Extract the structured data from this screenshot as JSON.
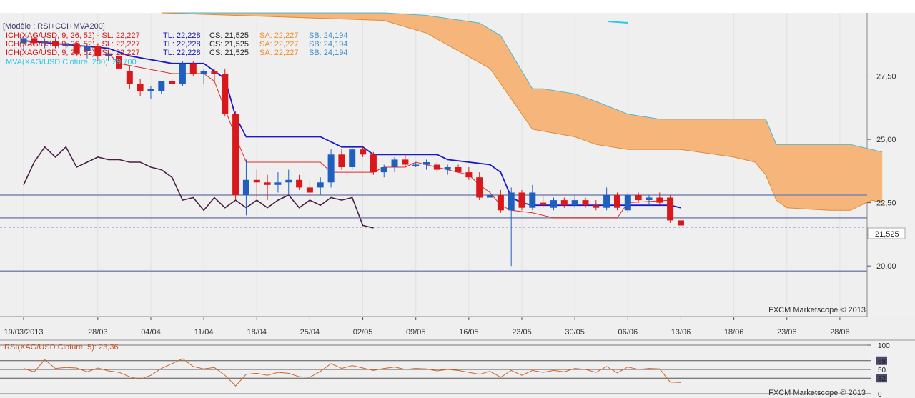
{
  "chart_data": [
    {
      "type": "candlestick",
      "title": "[Modèle : RSI+CCI+MVA200]",
      "legend": [
        {
          "text": "ICH(XAG/USD, 9, 26, 52) -  SL: 22,227",
          "tl": "TL: 22,228",
          "cs": "CS: 21,525",
          "sa": "SA: 22,227",
          "sb": "SB: 24,194"
        },
        {
          "text": "ICH(XAG/USD, 9, 26, 52) -  SL: 22,227",
          "tl": "TL: 22,228",
          "cs": "CS: 21,525",
          "sa": "SA: 22,227",
          "sb": "SB: 24,194"
        },
        {
          "text": "ICH(XAG/USD, 9, 26, 52) -  SL: 22,227",
          "tl": "TL: 22,228",
          "cs": "CS: 21,525",
          "sa": "SA: 22,227",
          "sb": "SB: 24,194"
        }
      ],
      "mva_label": "MVA(XAG/USD.Cloture, 200): 29,700",
      "watermark": "FXCM Marketscope © 2013",
      "ylim": [
        18.0,
        30.0
      ],
      "y_ticks": [
        "27,50",
        "25,00",
        "22,50",
        "20,00"
      ],
      "y_tick_values": [
        27.5,
        25.0,
        22.5,
        20.0
      ],
      "last_price": {
        "label": "21,525",
        "value": 21.525
      },
      "x_ticks": [
        "19/03/2013",
        "28/03",
        "04/04",
        "11/04",
        "18/04",
        "25/04",
        "02/05",
        "09/05",
        "16/05",
        "23/05",
        "30/05",
        "06/06",
        "13/06",
        "18/06",
        "23/06",
        "28/06"
      ],
      "x_tick_index": [
        0,
        7,
        12,
        17,
        22,
        27,
        32,
        37,
        42,
        47,
        52,
        57,
        62,
        67,
        72,
        77
      ],
      "hlines": [
        22.8,
        21.9,
        19.8
      ],
      "candles": [
        {
          "o": 28.8,
          "h": 29.1,
          "l": 28.5,
          "c": 29.0
        },
        {
          "o": 29.0,
          "h": 29.2,
          "l": 28.7,
          "c": 28.8
        },
        {
          "o": 28.8,
          "h": 29.0,
          "l": 28.6,
          "c": 28.9
        },
        {
          "o": 28.9,
          "h": 29.0,
          "l": 28.6,
          "c": 28.7
        },
        {
          "o": 28.7,
          "h": 28.9,
          "l": 28.5,
          "c": 28.8
        },
        {
          "o": 28.8,
          "h": 28.9,
          "l": 28.3,
          "c": 28.4
        },
        {
          "o": 28.5,
          "h": 28.8,
          "l": 28.2,
          "c": 28.7
        },
        {
          "o": 28.7,
          "h": 28.8,
          "l": 28.1,
          "c": 28.3
        },
        {
          "o": 28.3,
          "h": 28.5,
          "l": 28.1,
          "c": 28.4
        },
        {
          "o": 28.3,
          "h": 28.4,
          "l": 27.6,
          "c": 27.8
        },
        {
          "o": 27.7,
          "h": 27.9,
          "l": 27.0,
          "c": 27.2
        },
        {
          "o": 27.2,
          "h": 27.4,
          "l": 26.7,
          "c": 26.9
        },
        {
          "o": 26.9,
          "h": 27.1,
          "l": 26.6,
          "c": 27.0
        },
        {
          "o": 26.9,
          "h": 27.3,
          "l": 26.8,
          "c": 27.3
        },
        {
          "o": 27.3,
          "h": 27.4,
          "l": 27.1,
          "c": 27.2
        },
        {
          "o": 27.2,
          "h": 28.1,
          "l": 27.1,
          "c": 28.0
        },
        {
          "o": 28.0,
          "h": 28.1,
          "l": 27.5,
          "c": 27.6
        },
        {
          "o": 27.6,
          "h": 27.8,
          "l": 27.2,
          "c": 27.7
        },
        {
          "o": 27.7,
          "h": 27.8,
          "l": 27.3,
          "c": 27.6
        },
        {
          "o": 27.6,
          "h": 27.8,
          "l": 25.9,
          "c": 26.0
        },
        {
          "o": 26.0,
          "h": 26.1,
          "l": 22.6,
          "c": 22.8
        },
        {
          "o": 22.8,
          "h": 24.2,
          "l": 22.0,
          "c": 23.4
        },
        {
          "o": 23.4,
          "h": 23.8,
          "l": 22.7,
          "c": 23.3
        },
        {
          "o": 23.3,
          "h": 23.6,
          "l": 22.6,
          "c": 23.2
        },
        {
          "o": 23.2,
          "h": 23.7,
          "l": 22.9,
          "c": 23.3
        },
        {
          "o": 23.3,
          "h": 23.8,
          "l": 22.8,
          "c": 23.4
        },
        {
          "o": 23.4,
          "h": 23.6,
          "l": 23.0,
          "c": 23.1
        },
        {
          "o": 23.1,
          "h": 23.4,
          "l": 22.8,
          "c": 22.9
        },
        {
          "o": 23.1,
          "h": 23.5,
          "l": 22.8,
          "c": 23.3
        },
        {
          "o": 23.3,
          "h": 24.6,
          "l": 23.1,
          "c": 24.4
        },
        {
          "o": 24.4,
          "h": 24.6,
          "l": 23.8,
          "c": 23.9
        },
        {
          "o": 23.9,
          "h": 24.7,
          "l": 23.8,
          "c": 24.6
        },
        {
          "o": 24.6,
          "h": 24.7,
          "l": 24.3,
          "c": 24.4
        },
        {
          "o": 24.4,
          "h": 24.5,
          "l": 23.6,
          "c": 23.7
        },
        {
          "o": 23.7,
          "h": 24.0,
          "l": 23.5,
          "c": 23.9
        },
        {
          "o": 23.9,
          "h": 24.3,
          "l": 23.7,
          "c": 24.2
        },
        {
          "o": 24.2,
          "h": 24.4,
          "l": 23.9,
          "c": 24.0
        },
        {
          "o": 24.0,
          "h": 24.1,
          "l": 23.9,
          "c": 24.0
        },
        {
          "o": 24.0,
          "h": 24.2,
          "l": 23.8,
          "c": 24.1
        },
        {
          "o": 24.0,
          "h": 24.1,
          "l": 23.7,
          "c": 23.8
        },
        {
          "o": 23.8,
          "h": 24.0,
          "l": 23.6,
          "c": 23.9
        },
        {
          "o": 23.9,
          "h": 24.0,
          "l": 23.7,
          "c": 23.7
        },
        {
          "o": 23.7,
          "h": 23.9,
          "l": 23.4,
          "c": 23.5
        },
        {
          "o": 23.5,
          "h": 23.7,
          "l": 22.6,
          "c": 22.7
        },
        {
          "o": 22.7,
          "h": 23.0,
          "l": 22.3,
          "c": 22.8
        },
        {
          "o": 22.8,
          "h": 23.0,
          "l": 22.1,
          "c": 22.2
        },
        {
          "o": 22.2,
          "h": 23.1,
          "l": 20.0,
          "c": 22.9
        },
        {
          "o": 22.9,
          "h": 23.0,
          "l": 22.2,
          "c": 22.3
        },
        {
          "o": 22.3,
          "h": 23.2,
          "l": 22.2,
          "c": 22.9
        },
        {
          "o": 22.5,
          "h": 22.8,
          "l": 22.3,
          "c": 22.4
        },
        {
          "o": 22.3,
          "h": 22.7,
          "l": 22.2,
          "c": 22.6
        },
        {
          "o": 22.6,
          "h": 22.7,
          "l": 22.3,
          "c": 22.4
        },
        {
          "o": 22.4,
          "h": 22.8,
          "l": 22.3,
          "c": 22.6
        },
        {
          "o": 22.6,
          "h": 22.7,
          "l": 22.3,
          "c": 22.4
        },
        {
          "o": 22.4,
          "h": 22.6,
          "l": 22.2,
          "c": 22.3
        },
        {
          "o": 22.3,
          "h": 23.1,
          "l": 22.2,
          "c": 22.8
        },
        {
          "o": 22.8,
          "h": 22.9,
          "l": 22.2,
          "c": 22.3
        },
        {
          "o": 22.2,
          "h": 22.9,
          "l": 22.1,
          "c": 22.8
        },
        {
          "o": 22.8,
          "h": 22.9,
          "l": 22.5,
          "c": 22.6
        },
        {
          "o": 22.6,
          "h": 22.8,
          "l": 22.4,
          "c": 22.7
        },
        {
          "o": 22.7,
          "h": 22.9,
          "l": 22.4,
          "c": 22.5
        },
        {
          "o": 22.7,
          "h": 22.8,
          "l": 21.7,
          "c": 21.8
        },
        {
          "o": 21.8,
          "h": 21.9,
          "l": 21.4,
          "c": 21.6
        }
      ],
      "tenkan": [
        [
          0,
          28.9
        ],
        [
          8,
          28.6
        ],
        [
          10,
          28.3
        ],
        [
          14,
          28.0
        ],
        [
          17,
          28.0
        ],
        [
          18,
          27.7
        ],
        [
          19,
          27.4
        ],
        [
          20,
          25.9
        ],
        [
          21,
          25.1
        ],
        [
          28,
          25.1
        ],
        [
          29,
          24.9
        ],
        [
          30,
          24.7
        ],
        [
          32,
          24.7
        ],
        [
          33,
          24.4
        ],
        [
          39,
          24.4
        ],
        [
          40,
          24.2
        ],
        [
          44,
          24.0
        ],
        [
          45,
          23.7
        ],
        [
          46,
          22.7
        ],
        [
          47,
          22.5
        ],
        [
          48,
          22.4
        ],
        [
          61,
          22.4
        ],
        [
          62,
          22.3
        ]
      ],
      "kijun": [
        [
          8,
          28.4
        ],
        [
          9,
          28.0
        ],
        [
          14,
          27.6
        ],
        [
          17,
          27.6
        ],
        [
          18,
          27.3
        ],
        [
          20,
          25.1
        ],
        [
          21,
          24.1
        ],
        [
          28,
          24.1
        ],
        [
          29,
          23.7
        ],
        [
          33,
          23.7
        ],
        [
          34,
          23.9
        ],
        [
          36,
          23.9
        ],
        [
          37,
          24.1
        ],
        [
          38,
          24.0
        ],
        [
          40,
          23.8
        ],
        [
          42,
          23.6
        ],
        [
          43,
          23.2
        ],
        [
          44,
          22.9
        ],
        [
          45,
          22.4
        ],
        [
          46,
          22.2
        ],
        [
          48,
          22.1
        ],
        [
          50,
          21.9
        ],
        [
          56,
          21.9
        ],
        [
          57,
          22.5
        ],
        [
          61,
          22.6
        ]
      ],
      "cloud_top": [
        [
          13,
          30.0
        ],
        [
          20,
          30.0
        ],
        [
          34,
          30.0
        ],
        [
          38,
          29.9
        ],
        [
          43,
          29.6
        ],
        [
          45,
          29.1
        ],
        [
          48,
          27.0
        ],
        [
          49,
          27.0
        ],
        [
          52,
          26.8
        ],
        [
          54,
          26.5
        ],
        [
          57,
          26.0
        ],
        [
          60,
          25.8
        ],
        [
          62,
          25.8
        ],
        [
          70,
          25.8
        ],
        [
          71,
          24.8
        ],
        [
          78,
          24.8
        ],
        [
          80,
          24.6
        ],
        [
          81,
          24.5
        ]
      ],
      "cloud_bottom": [
        [
          13,
          30.0
        ],
        [
          20,
          29.9
        ],
        [
          34,
          29.7
        ],
        [
          38,
          29.2
        ],
        [
          41,
          28.5
        ],
        [
          44,
          27.8
        ],
        [
          48,
          25.4
        ],
        [
          52,
          25.1
        ],
        [
          54,
          24.8
        ],
        [
          57,
          24.6
        ],
        [
          62,
          24.6
        ],
        [
          67,
          24.3
        ],
        [
          69,
          24.1
        ],
        [
          70,
          23.6
        ],
        [
          71,
          22.6
        ],
        [
          72,
          22.3
        ],
        [
          76,
          22.2
        ],
        [
          78,
          22.2
        ],
        [
          80,
          22.6
        ],
        [
          81,
          22.5
        ]
      ],
      "chikou": [
        [
          0,
          23.2
        ],
        [
          1,
          24.1
        ],
        [
          2,
          24.7
        ],
        [
          3,
          24.3
        ],
        [
          4,
          24.7
        ],
        [
          5,
          23.9
        ],
        [
          6,
          24.1
        ],
        [
          7,
          24.3
        ],
        [
          8,
          24.2
        ],
        [
          9,
          24.2
        ],
        [
          10,
          24.1
        ],
        [
          11,
          24.1
        ],
        [
          12,
          23.9
        ],
        [
          13,
          23.8
        ],
        [
          14,
          23.5
        ],
        [
          15,
          22.6
        ],
        [
          16,
          22.7
        ],
        [
          17,
          22.2
        ],
        [
          18,
          22.7
        ],
        [
          19,
          22.3
        ],
        [
          20,
          22.6
        ],
        [
          21,
          22.3
        ],
        [
          22,
          22.6
        ],
        [
          23,
          22.3
        ],
        [
          24,
          22.6
        ],
        [
          25,
          22.8
        ],
        [
          26,
          22.3
        ],
        [
          27,
          22.6
        ],
        [
          28,
          22.4
        ],
        [
          29,
          22.7
        ],
        [
          30,
          22.6
        ],
        [
          31,
          22.7
        ],
        [
          32,
          21.6
        ],
        [
          33,
          21.5
        ]
      ]
    },
    {
      "type": "line",
      "title": "RSI(XAG/USD.Cloture, 5): 23,36",
      "watermark": "FXCM Marketscope © 2013",
      "ylim": [
        0,
        100
      ],
      "y_ticks": [
        "100",
        "68",
        "50",
        "32",
        "0"
      ],
      "y_tick_values": [
        100,
        68,
        50,
        32,
        0
      ],
      "highlight_ticks": [
        "68",
        "32"
      ],
      "hlines": [
        100,
        68,
        50,
        32,
        0
      ],
      "series": [
        {
          "values": [
            [
              0,
              52
            ],
            [
              1,
              45
            ],
            [
              2,
              70
            ],
            [
              3,
              52
            ],
            [
              4,
              54
            ],
            [
              5,
              53
            ],
            [
              6,
              45
            ],
            [
              7,
              53
            ],
            [
              8,
              47
            ],
            [
              9,
              44
            ],
            [
              10,
              35
            ],
            [
              11,
              30
            ],
            [
              12,
              38
            ],
            [
              13,
              52
            ],
            [
              14,
              62
            ],
            [
              15,
              72
            ],
            [
              16,
              56
            ],
            [
              17,
              51
            ],
            [
              18,
              54
            ],
            [
              19,
              38
            ],
            [
              20,
              16
            ],
            [
              21,
              40
            ],
            [
              22,
              42
            ],
            [
              23,
              38
            ],
            [
              24,
              44
            ],
            [
              25,
              42
            ],
            [
              26,
              35
            ],
            [
              27,
              34
            ],
            [
              28,
              46
            ],
            [
              29,
              62
            ],
            [
              30,
              52
            ],
            [
              31,
              58
            ],
            [
              32,
              53
            ],
            [
              33,
              48
            ],
            [
              34,
              52
            ],
            [
              35,
              55
            ],
            [
              36,
              50
            ],
            [
              37,
              52
            ],
            [
              38,
              51
            ],
            [
              39,
              47
            ],
            [
              40,
              50
            ],
            [
              41,
              48
            ],
            [
              42,
              44
            ],
            [
              43,
              40
            ],
            [
              44,
              46
            ],
            [
              45,
              34
            ],
            [
              46,
              48
            ],
            [
              47,
              38
            ],
            [
              48,
              48
            ],
            [
              49,
              44
            ],
            [
              50,
              48
            ],
            [
              51,
              45
            ],
            [
              52,
              52
            ],
            [
              53,
              50
            ],
            [
              54,
              44
            ],
            [
              55,
              56
            ],
            [
              56,
              43
            ],
            [
              57,
              55
            ],
            [
              58,
              50
            ],
            [
              59,
              52
            ],
            [
              60,
              51
            ],
            [
              61,
              24
            ],
            [
              62,
              23
            ]
          ]
        }
      ]
    }
  ]
}
